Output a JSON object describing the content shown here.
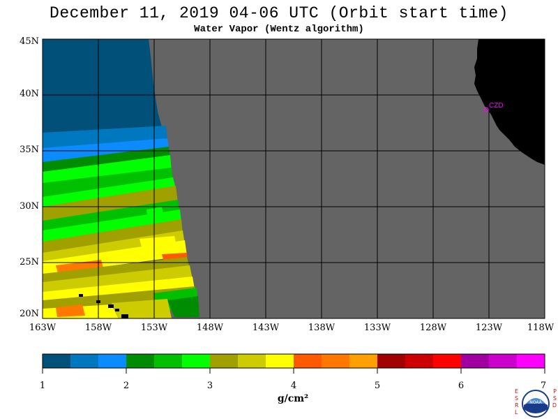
{
  "title": "December 11, 2019  04-06 UTC  (Orbit start time)",
  "subtitle": "Water Vapor (Wentz algorithm)",
  "lat_labels": [
    "45N",
    "40N",
    "35N",
    "30N",
    "25N",
    "20N"
  ],
  "lon_labels": [
    "163W",
    "158W",
    "153W",
    "148W",
    "143W",
    "138W",
    "133W",
    "128W",
    "123W",
    "118W"
  ],
  "station_label": "CZD",
  "colorbar": {
    "tick_labels": [
      "1",
      "2",
      "3",
      "4",
      "5",
      "6",
      "7"
    ],
    "units": "g/cm²",
    "colors": [
      "#00507a",
      "#0078c0",
      "#0a8cff",
      "#008c00",
      "#00c000",
      "#00ff00",
      "#a0a000",
      "#cccc00",
      "#ffff00",
      "#ff5a00",
      "#ff7800",
      "#ffa000",
      "#a00000",
      "#cc0000",
      "#ff0000",
      "#a000a0",
      "#cc00cc",
      "#ff00ff"
    ]
  },
  "colors": {
    "no_data": "#646464",
    "land": "#000000",
    "grid": "#000000",
    "station": "#ff00ff"
  },
  "logo": {
    "left_letters": "ESRL",
    "right_letters": "PSD",
    "center_text": "NOAA"
  }
}
